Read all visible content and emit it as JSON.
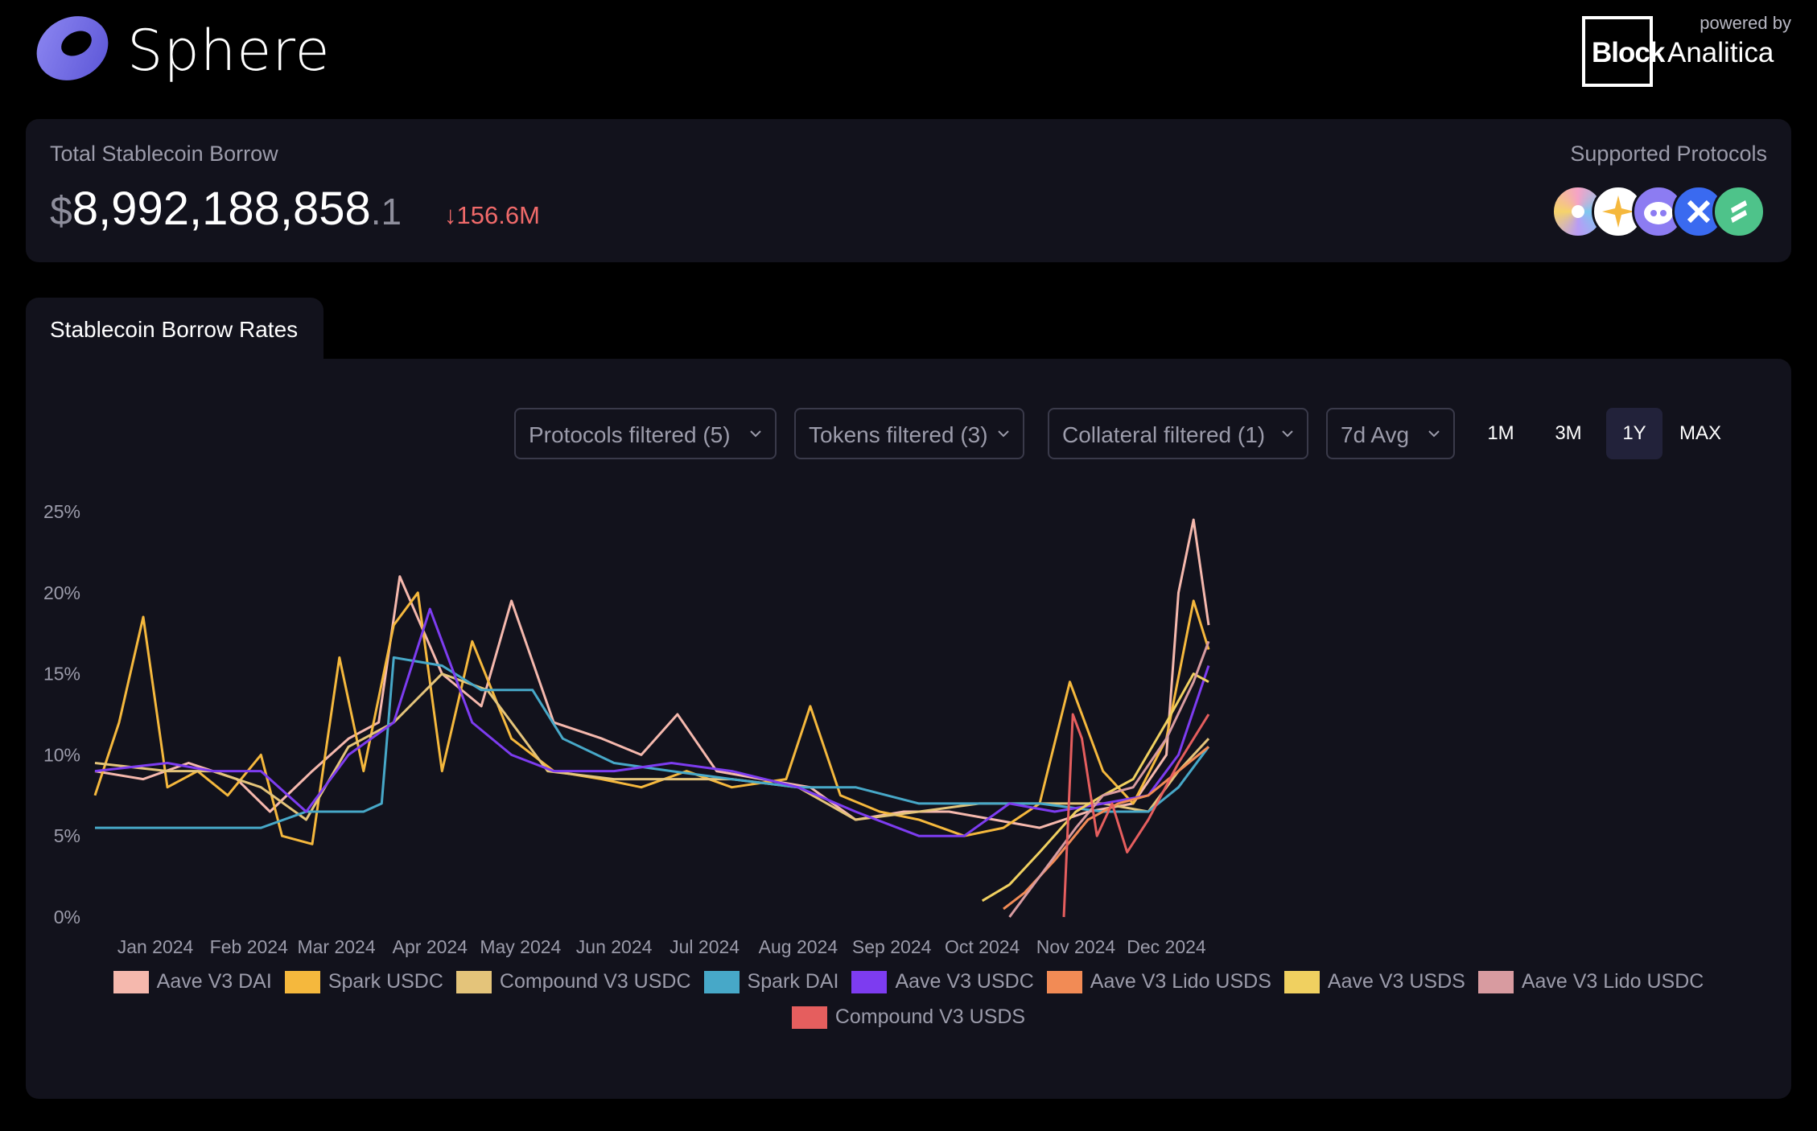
{
  "brand": {
    "name": "Sphere",
    "powered_by_label": "powered by",
    "partner_block": "Block",
    "partner_rest": "Analitica"
  },
  "summary": {
    "title": "Total Stablecoin Borrow",
    "currency_symbol": "$",
    "value_main": "8,992,188,858",
    "value_decimal": ".1",
    "change": "↓156.6M",
    "change_color": "#f06a6a",
    "supported_title": "Supported Protocols",
    "protocol_icons": [
      "aave-icon",
      "spark-icon",
      "morpho-icon",
      "fluid-icon",
      "compound-icon"
    ]
  },
  "tab": {
    "label": "Stablecoin Borrow Rates"
  },
  "filters": {
    "protocols": "Protocols filtered (5)",
    "tokens": "Tokens filtered (3)",
    "collateral": "Collateral filtered (1)",
    "average": "7d Avg"
  },
  "ranges": {
    "items": [
      "1M",
      "3M",
      "1Y",
      "MAX"
    ],
    "active": "1Y"
  },
  "chart_data": {
    "type": "line",
    "title": "",
    "xlabel": "",
    "ylabel": "",
    "x_ticks": [
      "Jan 2024",
      "Feb 2024",
      "Mar 2024",
      "Apr 2024",
      "May 2024",
      "Jun 2024",
      "Jul 2024",
      "Aug 2024",
      "Sep 2024",
      "Oct 2024",
      "Nov 2024",
      "Dec 2024"
    ],
    "y_ticks": [
      "0%",
      "5%",
      "10%",
      "15%",
      "20%",
      "25%"
    ],
    "ylim": [
      0,
      25
    ],
    "x_range": [
      "2023-12-12",
      "2024-12-15"
    ],
    "grid": false,
    "legend": "bottom",
    "series": [
      {
        "name": "Aave V3 DAI",
        "color": "#f5b8ad",
        "x": [
          "2023-12-12",
          "2023-12-28",
          "2024-01-12",
          "2024-01-28",
          "2024-02-08",
          "2024-02-22",
          "2024-03-05",
          "2024-03-15",
          "2024-03-22",
          "2024-04-05",
          "2024-04-18",
          "2024-04-28",
          "2024-05-12",
          "2024-05-28",
          "2024-06-10",
          "2024-06-22",
          "2024-07-05",
          "2024-07-20",
          "2024-08-05",
          "2024-08-20",
          "2024-09-05",
          "2024-09-20",
          "2024-10-05",
          "2024-10-20",
          "2024-11-05",
          "2024-11-20",
          "2024-12-01",
          "2024-12-05",
          "2024-12-10",
          "2024-12-15"
        ],
        "values": [
          9.0,
          8.5,
          9.5,
          8.5,
          6.5,
          9.0,
          11.0,
          12.0,
          21.0,
          15.0,
          13.0,
          19.5,
          12.0,
          11.0,
          10.0,
          12.5,
          9.0,
          8.5,
          8.0,
          6.0,
          6.5,
          6.5,
          6.0,
          5.5,
          6.5,
          7.0,
          10.0,
          20.0,
          24.5,
          18.0
        ]
      },
      {
        "name": "Spark USDC",
        "color": "#f5b83d",
        "x": [
          "2023-12-12",
          "2023-12-20",
          "2023-12-28",
          "2024-01-05",
          "2024-01-15",
          "2024-01-25",
          "2024-02-05",
          "2024-02-12",
          "2024-02-22",
          "2024-03-02",
          "2024-03-10",
          "2024-03-20",
          "2024-03-28",
          "2024-04-05",
          "2024-04-15",
          "2024-04-28",
          "2024-05-12",
          "2024-05-28",
          "2024-06-10",
          "2024-06-25",
          "2024-07-10",
          "2024-07-28",
          "2024-08-05",
          "2024-08-15",
          "2024-08-28",
          "2024-09-10",
          "2024-09-25",
          "2024-10-08",
          "2024-10-20",
          "2024-10-30",
          "2024-11-10",
          "2024-11-20",
          "2024-12-01",
          "2024-12-10",
          "2024-12-15"
        ],
        "values": [
          7.5,
          12.0,
          18.5,
          8.0,
          9.0,
          7.5,
          10.0,
          5.0,
          4.5,
          16.0,
          9.0,
          18.0,
          20.0,
          9.0,
          17.0,
          11.0,
          9.0,
          8.5,
          8.0,
          9.0,
          8.0,
          8.5,
          13.0,
          7.5,
          6.5,
          6.0,
          5.0,
          5.5,
          7.0,
          14.5,
          9.0,
          7.0,
          11.0,
          19.5,
          16.5
        ]
      },
      {
        "name": "Compound V3 USDC",
        "color": "#e4c47a",
        "x": [
          "2023-12-12",
          "2024-01-05",
          "2024-01-20",
          "2024-02-05",
          "2024-02-20",
          "2024-03-05",
          "2024-03-20",
          "2024-04-05",
          "2024-04-20",
          "2024-05-10",
          "2024-06-01",
          "2024-06-20",
          "2024-07-10",
          "2024-08-01",
          "2024-08-20",
          "2024-09-10",
          "2024-09-30",
          "2024-10-20",
          "2024-11-10",
          "2024-11-25",
          "2024-12-05",
          "2024-12-15"
        ],
        "values": [
          9.5,
          9.0,
          9.0,
          8.0,
          6.0,
          10.5,
          12.0,
          15.0,
          14.0,
          9.0,
          8.5,
          8.5,
          8.5,
          8.0,
          6.0,
          6.5,
          7.0,
          7.0,
          7.0,
          6.5,
          9.0,
          11.0
        ]
      },
      {
        "name": "Spark DAI",
        "color": "#47a8c8",
        "x": [
          "2023-12-12",
          "2024-01-10",
          "2024-02-05",
          "2024-02-20",
          "2024-03-10",
          "2024-03-16",
          "2024-03-20",
          "2024-04-05",
          "2024-04-18",
          "2024-05-05",
          "2024-05-15",
          "2024-06-01",
          "2024-06-20",
          "2024-07-10",
          "2024-08-01",
          "2024-08-20",
          "2024-09-10",
          "2024-10-05",
          "2024-10-20",
          "2024-11-10",
          "2024-11-25",
          "2024-12-05",
          "2024-12-15"
        ],
        "values": [
          5.5,
          5.5,
          5.5,
          6.5,
          6.5,
          7.0,
          16.0,
          15.5,
          14.0,
          14.0,
          11.0,
          9.5,
          9.0,
          8.5,
          8.0,
          8.0,
          7.0,
          7.0,
          7.0,
          6.5,
          6.5,
          8.0,
          10.5
        ]
      },
      {
        "name": "Aave V3 USDC",
        "color": "#7d3cf0",
        "x": [
          "2023-12-12",
          "2024-01-05",
          "2024-01-20",
          "2024-02-05",
          "2024-02-20",
          "2024-03-05",
          "2024-03-20",
          "2024-04-01",
          "2024-04-15",
          "2024-04-28",
          "2024-05-12",
          "2024-06-01",
          "2024-06-20",
          "2024-07-10",
          "2024-08-01",
          "2024-08-20",
          "2024-09-10",
          "2024-09-25",
          "2024-10-10",
          "2024-10-25",
          "2024-11-10",
          "2024-11-25",
          "2024-12-05",
          "2024-12-15"
        ],
        "values": [
          9.0,
          9.5,
          9.0,
          9.0,
          6.5,
          10.0,
          12.0,
          19.0,
          12.0,
          10.0,
          9.0,
          9.0,
          9.5,
          9.0,
          8.0,
          6.5,
          5.0,
          5.0,
          7.0,
          6.5,
          7.0,
          7.5,
          10.0,
          15.5
        ]
      },
      {
        "name": "Aave V3 Lido USDS",
        "color": "#f28b55",
        "x": [
          "2024-10-08",
          "2024-10-15",
          "2024-10-25",
          "2024-11-05",
          "2024-11-15",
          "2024-11-25",
          "2024-12-05",
          "2024-12-15"
        ],
        "values": [
          0.5,
          1.5,
          3.5,
          6.0,
          7.0,
          7.5,
          9.0,
          10.5
        ]
      },
      {
        "name": "Aave V3 USDS",
        "color": "#f0d060",
        "x": [
          "2024-10-01",
          "2024-10-10",
          "2024-10-20",
          "2024-11-01",
          "2024-11-10",
          "2024-11-20",
          "2024-12-01",
          "2024-12-10",
          "2024-12-15"
        ],
        "values": [
          1.0,
          2.0,
          4.0,
          6.5,
          7.5,
          8.5,
          12.0,
          15.0,
          14.5
        ]
      },
      {
        "name": "Aave V3 Lido USDC",
        "color": "#d89ba0",
        "x": [
          "2024-10-10",
          "2024-10-20",
          "2024-11-01",
          "2024-11-10",
          "2024-11-20",
          "2024-12-01",
          "2024-12-10",
          "2024-12-15"
        ],
        "values": [
          0.0,
          2.5,
          5.5,
          7.5,
          8.0,
          11.0,
          14.5,
          17.0
        ]
      },
      {
        "name": "Compound V3 USDS",
        "color": "#e55e5e",
        "x": [
          "2024-10-28",
          "2024-10-31",
          "2024-11-03",
          "2024-11-08",
          "2024-11-13",
          "2024-11-18",
          "2024-11-25",
          "2024-12-05",
          "2024-12-15"
        ],
        "values": [
          0.0,
          12.5,
          11.0,
          5.0,
          7.0,
          4.0,
          6.0,
          9.5,
          12.5
        ]
      }
    ]
  }
}
